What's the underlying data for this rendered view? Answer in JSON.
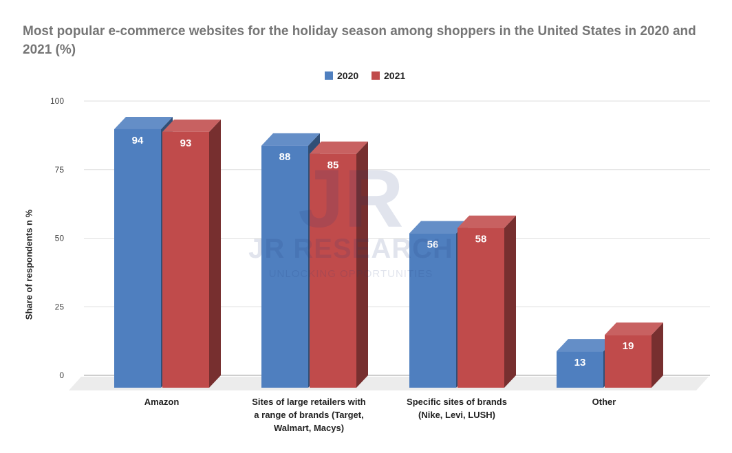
{
  "chart_data": {
    "type": "bar",
    "title": "Most popular e-commerce websites for the holiday season among shoppers in the United States in 2020 and 2021 (%)",
    "ylabel": "Share of respondents n %",
    "xlabel": "",
    "categories": [
      "Amazon",
      "Sites of large retailers with a range of brands (Target, Walmart, Macys)",
      "Specific sites of brands (Nike, Levi, LUSH)",
      "Other"
    ],
    "series": [
      {
        "name": "2020",
        "values": [
          94,
          88,
          56,
          13
        ],
        "color": "#4f7fbf"
      },
      {
        "name": "2021",
        "values": [
          93,
          85,
          58,
          19
        ],
        "color": "#c04b4b"
      }
    ],
    "ylim": [
      0,
      100
    ],
    "yticks": [
      "0",
      "25",
      "50",
      "75",
      "100"
    ],
    "legend_position": "top",
    "grid": true,
    "style": "3d"
  },
  "watermark": {
    "mark": "JR",
    "name": "JR RESEARCH",
    "tagline": "UNLOCKING OPPORTUNITIES"
  }
}
